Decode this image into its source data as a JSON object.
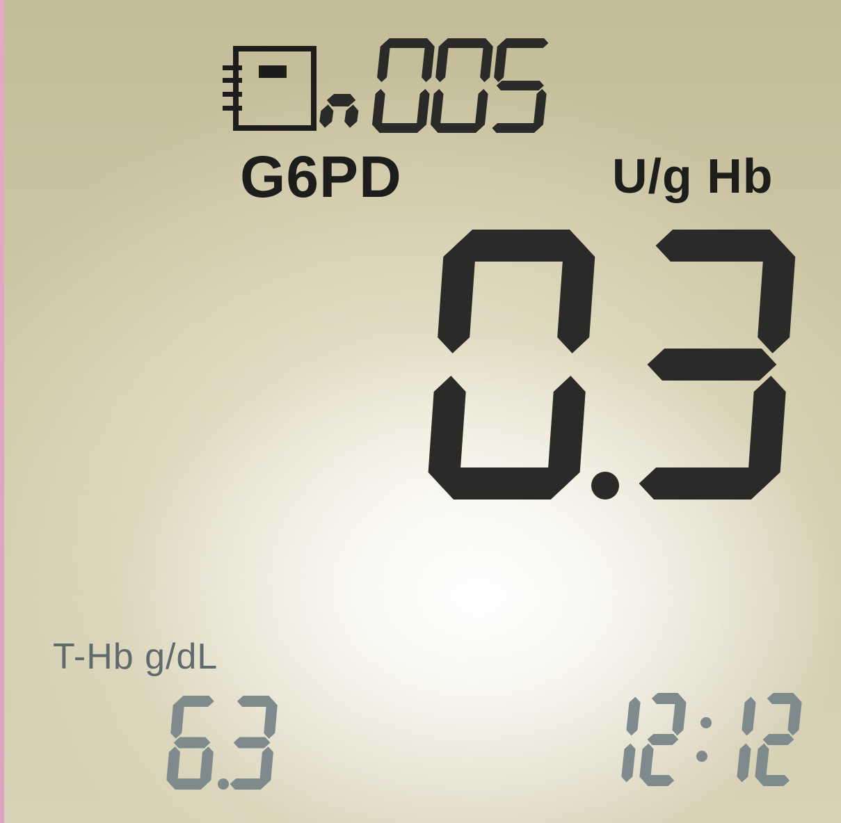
{
  "display": {
    "counter_prefix": "n",
    "counter_value": "005",
    "test_name": "G6PD",
    "unit": "U/g Hb",
    "main_reading": "0.3",
    "hb_label": "T-Hb g/dL",
    "hb_value": "6.3",
    "time": "12:12"
  },
  "icons": {
    "memory": "memory-notebook-icon"
  },
  "colors": {
    "segment_dark": "#2a2a28",
    "segment_light": "#7e8a8c"
  }
}
